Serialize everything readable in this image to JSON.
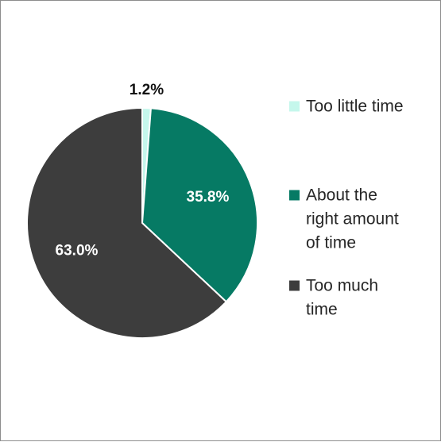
{
  "chart_data": {
    "type": "pie",
    "title": "",
    "series": [
      {
        "name": "Too little time",
        "value": 1.2,
        "label": "1.2%",
        "color": "#c5f7ec",
        "legend_lines": [
          "Too little time"
        ]
      },
      {
        "name": "About the right amount of time",
        "value": 35.8,
        "label": "35.8%",
        "color": "#067a64",
        "legend_lines": [
          "About the",
          "right amount",
          "of time"
        ]
      },
      {
        "name": "Too much time",
        "value": 63.0,
        "label": "63.0%",
        "color": "#3d3d3d",
        "legend_lines": [
          "Too much",
          "time"
        ]
      }
    ],
    "start_angle_deg": 0,
    "direction": "clockwise",
    "legend_position": "right",
    "label_colors": [
      "#111111",
      "#ffffff",
      "#ffffff"
    ]
  }
}
